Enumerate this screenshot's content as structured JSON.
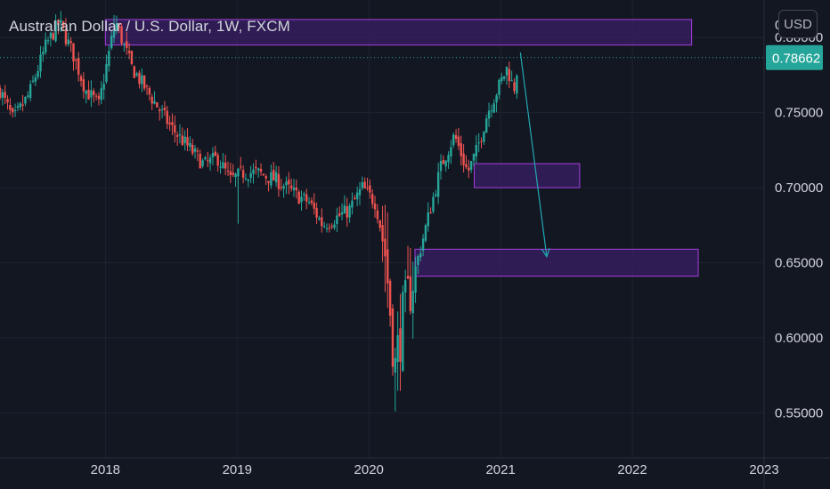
{
  "chart_data": {
    "type": "candlestick",
    "title": "Australian Dollar / U.S. Dollar, 1W, FXCM",
    "currency": "USD",
    "last_price": "0.78662",
    "ylim": [
      0.52,
      0.825
    ],
    "y_ticks": [
      "0.80000",
      "0.75000",
      "0.70000",
      "0.65000",
      "0.60000",
      "0.55000"
    ],
    "y_tick_values": [
      0.8,
      0.75,
      0.7,
      0.65,
      0.6,
      0.55
    ],
    "x_ticks": [
      "2018",
      "2019",
      "2020",
      "2021",
      "2022",
      "2023"
    ],
    "x_tick_values": [
      2018.0,
      2019.0,
      2020.0,
      2021.0,
      2022.0,
      2023.0
    ],
    "xlim": [
      2017.2,
      2023.0
    ],
    "price_path": [
      [
        2017.2,
        0.765
      ],
      [
        2017.3,
        0.745
      ],
      [
        2017.42,
        0.762
      ],
      [
        2017.55,
        0.795
      ],
      [
        2017.65,
        0.81
      ],
      [
        2017.75,
        0.79
      ],
      [
        2017.85,
        0.765
      ],
      [
        2017.95,
        0.755
      ],
      [
        2018.05,
        0.8
      ],
      [
        2018.08,
        0.81
      ],
      [
        2018.2,
        0.78
      ],
      [
        2018.35,
        0.76
      ],
      [
        2018.5,
        0.74
      ],
      [
        2018.65,
        0.725
      ],
      [
        2018.75,
        0.715
      ],
      [
        2018.85,
        0.72
      ],
      [
        2018.95,
        0.705
      ],
      [
        2019.05,
        0.71
      ],
      [
        2019.15,
        0.71
      ],
      [
        2019.3,
        0.705
      ],
      [
        2019.45,
        0.695
      ],
      [
        2019.55,
        0.69
      ],
      [
        2019.65,
        0.675
      ],
      [
        2019.75,
        0.68
      ],
      [
        2019.85,
        0.685
      ],
      [
        2019.95,
        0.7
      ],
      [
        2020.05,
        0.69
      ],
      [
        2020.12,
        0.66
      ],
      [
        2020.2,
        0.58
      ],
      [
        2020.25,
        0.61
      ],
      [
        2020.35,
        0.645
      ],
      [
        2020.45,
        0.68
      ],
      [
        2020.55,
        0.715
      ],
      [
        2020.65,
        0.735
      ],
      [
        2020.75,
        0.71
      ],
      [
        2020.82,
        0.725
      ],
      [
        2020.9,
        0.75
      ],
      [
        2021.0,
        0.77
      ],
      [
        2021.05,
        0.78
      ],
      [
        2021.1,
        0.765
      ],
      [
        2021.14,
        0.787
      ]
    ],
    "wick_extremes": [
      {
        "x": 2017.7,
        "y": 0.813
      },
      {
        "x": 2018.07,
        "y": 0.815
      },
      {
        "x": 2019.0,
        "y": 0.676
      },
      {
        "x": 2020.2,
        "y": 0.551
      }
    ],
    "annotations": [
      {
        "type": "rectangle",
        "x0": 2018.0,
        "x1": 2022.45,
        "y0": 0.795,
        "y1": 0.812
      },
      {
        "type": "rectangle",
        "x0": 2020.8,
        "x1": 2021.6,
        "y0": 0.7,
        "y1": 0.716
      },
      {
        "type": "rectangle",
        "x0": 2020.35,
        "x1": 2022.5,
        "y0": 0.641,
        "y1": 0.659
      },
      {
        "type": "arrow",
        "x0": 2021.15,
        "y0": 0.79,
        "x1": 2021.35,
        "y1": 0.654
      }
    ],
    "colors": {
      "background": "#131722",
      "grid": "#1f2330",
      "up": "#26a69a",
      "down": "#ef5350",
      "zone_fill": "#3b1f66",
      "zone_stroke": "#a43fde",
      "arrow": "#22a8b2",
      "price_line": "#26a69a",
      "axis_text": "#d1d4dc"
    }
  }
}
